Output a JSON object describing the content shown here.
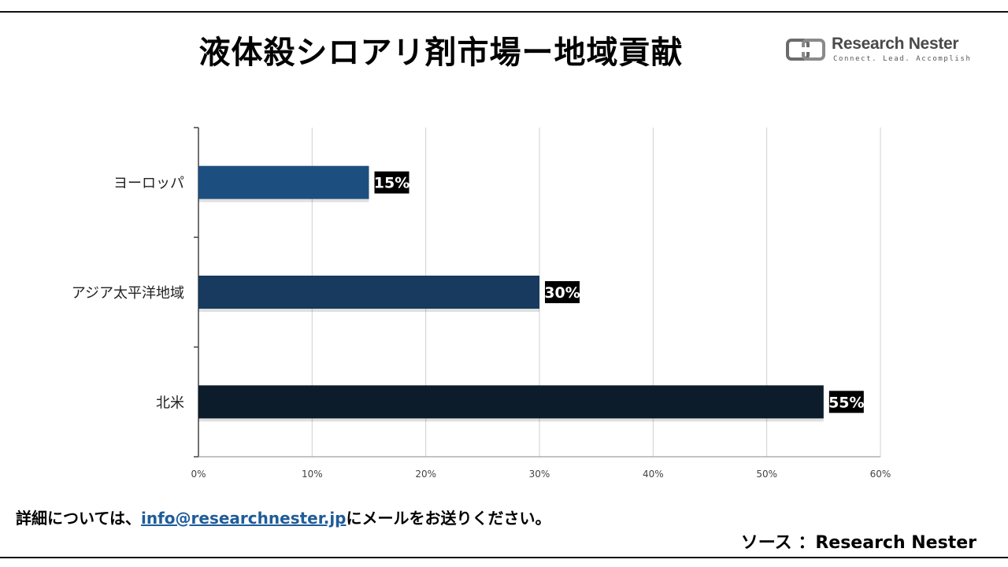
{
  "header": {
    "title": "液体殺シロアリ剤市場ー地域貢献"
  },
  "logo": {
    "name": "Research Nester",
    "tagline": "Connect. Lead. Accomplish"
  },
  "chart_data": {
    "type": "bar",
    "orientation": "horizontal",
    "title": "液体殺シロアリ剤市場ー地域貢献",
    "categories": [
      "ヨーロッパ",
      "アジア太平洋地域",
      "北米"
    ],
    "values": [
      15,
      30,
      55
    ],
    "value_labels": [
      "15%",
      "30%",
      "55%"
    ],
    "colors": [
      "#1c4f7f",
      "#173a5e",
      "#0d1c2b"
    ],
    "xlim": [
      0,
      60
    ],
    "xticks": [
      "0%",
      "10%",
      "20%",
      "30%",
      "40%",
      "50%",
      "60%"
    ],
    "xlabel": "",
    "ylabel": "",
    "grid": true
  },
  "footer": {
    "note_prefix": "詳細については、",
    "email": "info@researchnester.jp",
    "note_suffix": "にメールをお送りください。",
    "source": "ソース ：Research Nester"
  }
}
